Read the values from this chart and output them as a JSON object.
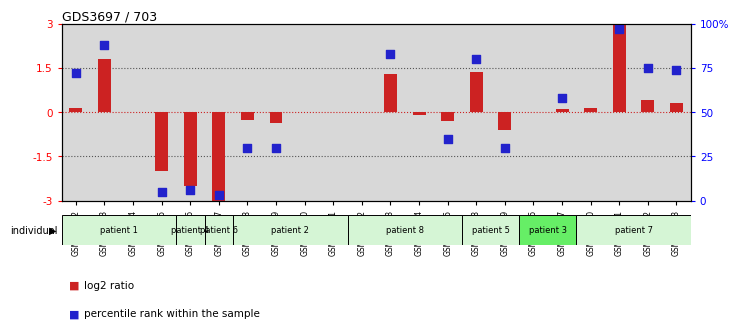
{
  "title": "GDS3697 / 703",
  "samples": [
    "GSM280132",
    "GSM280133",
    "GSM280134",
    "GSM280135",
    "GSM280136",
    "GSM280137",
    "GSM280138",
    "GSM280139",
    "GSM280140",
    "GSM280141",
    "GSM280142",
    "GSM280143",
    "GSM280144",
    "GSM280145",
    "GSM280148",
    "GSM280149",
    "GSM280146",
    "GSM280147",
    "GSM280150",
    "GSM280151",
    "GSM280152",
    "GSM280153"
  ],
  "log2_ratio": [
    0.15,
    1.8,
    0.0,
    -2.0,
    -2.5,
    -3.0,
    -0.25,
    -0.35,
    0.0,
    0.0,
    0.0,
    1.3,
    -0.1,
    -0.3,
    1.35,
    -0.6,
    0.0,
    0.1,
    0.15,
    3.0,
    0.4,
    0.3
  ],
  "percentile": [
    72,
    88,
    0,
    5,
    6,
    3,
    30,
    30,
    0,
    0,
    0,
    83,
    0,
    35,
    80,
    30,
    0,
    58,
    0,
    97,
    75,
    74
  ],
  "patients": [
    {
      "label": "patient 1",
      "start": 0,
      "end": 4,
      "color": "#d5f5d5"
    },
    {
      "label": "patient 4",
      "start": 4,
      "end": 5,
      "color": "#d5f5d5"
    },
    {
      "label": "patient 6",
      "start": 5,
      "end": 6,
      "color": "#d5f5d5"
    },
    {
      "label": "patient 2",
      "start": 6,
      "end": 10,
      "color": "#d5f5d5"
    },
    {
      "label": "patient 8",
      "start": 10,
      "end": 14,
      "color": "#d5f5d5"
    },
    {
      "label": "patient 5",
      "start": 14,
      "end": 16,
      "color": "#d5f5d5"
    },
    {
      "label": "patient 3",
      "start": 16,
      "end": 18,
      "color": "#66ee66"
    },
    {
      "label": "patient 7",
      "start": 18,
      "end": 22,
      "color": "#d5f5d5"
    }
  ],
  "ylim_left": [
    -3,
    3
  ],
  "ylim_right": [
    0,
    100
  ],
  "yticks_left": [
    -3,
    -1.5,
    0,
    1.5,
    3
  ],
  "yticks_right": [
    0,
    25,
    50,
    75,
    100
  ],
  "bar_color": "#cc2222",
  "dot_color": "#2222cc",
  "bg_color": "#d8d8d8",
  "zero_line_color": "#cc2222",
  "dotted_line_color": "#555555",
  "bar_width": 0.45,
  "dot_size": 35
}
